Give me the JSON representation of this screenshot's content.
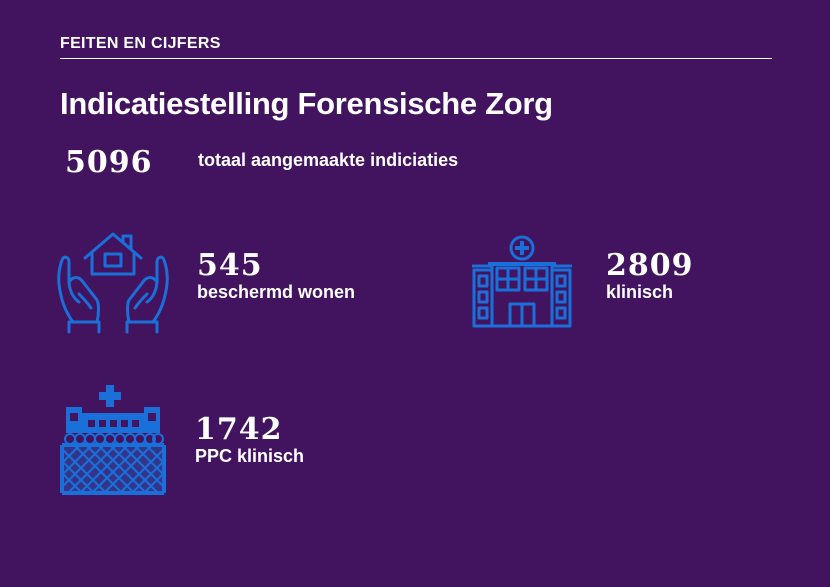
{
  "header": {
    "section_label": "FEITEN EN CIJFERS",
    "title": "Indicatiestelling Forensische Zorg"
  },
  "total": {
    "value": "5096",
    "label": "totaal aangemaakte indiciaties"
  },
  "stats": [
    {
      "icon": "house-in-hands-icon",
      "value": "545",
      "label": "beschermd wonen"
    },
    {
      "icon": "hospital-icon",
      "value": "2809",
      "label": "klinisch"
    },
    {
      "icon": "secure-clinic-icon",
      "value": "1742",
      "label": "PPC klinisch"
    }
  ],
  "colors": {
    "background": "#42145f",
    "text": "#ffffff",
    "icon_blue": "#1a6fd8"
  }
}
